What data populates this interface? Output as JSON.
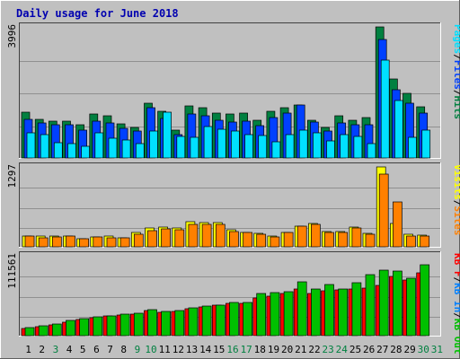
{
  "title": "Daily usage for June 2018",
  "colors": {
    "frame_bg": "#c0c0c0",
    "plot_bg": "#c0c0c0",
    "title": "#0000b0",
    "axis_label": "#000000",
    "hits": "#008040",
    "files": "#0040ff",
    "pages": "#00e0ff",
    "visits": "#ffff00",
    "sites": "#ff8000",
    "kbf": "#ff0000",
    "kbin": "#0080ff",
    "kbout": "#00c000",
    "weekend_day": "#008040",
    "weekday": "#000000"
  },
  "chart_data": [
    {
      "type": "bar",
      "panel": "top",
      "y_max_label": "3996",
      "ylim": [
        0,
        3996
      ],
      "legend": [
        {
          "text": "Pages",
          "color": "#00e0ff"
        },
        {
          "text": "/",
          "color": "#000000"
        },
        {
          "text": "Files",
          "color": "#0040ff"
        },
        {
          "text": "/",
          "color": "#000000"
        },
        {
          "text": "Hits",
          "color": "#008040"
        }
      ],
      "categories": [
        "1",
        "2",
        "3",
        "4",
        "5",
        "6",
        "7",
        "8",
        "9",
        "10",
        "11",
        "12",
        "13",
        "14",
        "15",
        "16",
        "17",
        "18",
        "19",
        "20",
        "21",
        "22",
        "23",
        "24",
        "25",
        "26",
        "27",
        "28",
        "29",
        "30",
        "31"
      ],
      "series": [
        {
          "name": "Hits",
          "values": [
            1400,
            1180,
            1120,
            1120,
            1020,
            1350,
            1290,
            1050,
            940,
            1680,
            1430,
            860,
            1580,
            1520,
            1370,
            1340,
            1360,
            1160,
            1410,
            1540,
            1620,
            1160,
            940,
            1280,
            1160,
            1220,
            3996,
            2420,
            1980,
            1560,
            null
          ]
        },
        {
          "name": "Files",
          "values": [
            1180,
            1080,
            1000,
            1000,
            860,
            1120,
            1060,
            890,
            820,
            1520,
            1200,
            720,
            1340,
            1280,
            1150,
            1100,
            1120,
            980,
            1220,
            1360,
            1620,
            1100,
            820,
            1080,
            1000,
            1020,
            3620,
            2080,
            1680,
            1360,
            null
          ]
        },
        {
          "name": "Pages",
          "values": [
            780,
            720,
            460,
            450,
            360,
            780,
            600,
            560,
            430,
            820,
            1400,
            650,
            620,
            960,
            870,
            820,
            720,
            690,
            480,
            720,
            840,
            760,
            530,
            700,
            660,
            430,
            2980,
            1760,
            620,
            840,
            null
          ]
        }
      ]
    },
    {
      "type": "bar",
      "panel": "middle",
      "y_max_label": "1297",
      "ylim": [
        0,
        1297
      ],
      "legend": [
        {
          "text": "Visits",
          "color": "#ffff00"
        },
        {
          "text": "/",
          "color": "#000000"
        },
        {
          "text": "Sites",
          "color": "#ff8000"
        }
      ],
      "categories": [
        "1",
        "2",
        "3",
        "4",
        "5",
        "6",
        "7",
        "8",
        "9",
        "10",
        "11",
        "12",
        "13",
        "14",
        "15",
        "16",
        "17",
        "18",
        "19",
        "20",
        "21",
        "22",
        "23",
        "24",
        "25",
        "26",
        "27",
        "28",
        "29",
        "30",
        "31"
      ],
      "series": [
        {
          "name": "Visits",
          "values": [
            180,
            170,
            170,
            180,
            130,
            160,
            170,
            150,
            230,
            300,
            320,
            300,
            410,
            400,
            390,
            280,
            240,
            220,
            170,
            230,
            340,
            380,
            250,
            250,
            320,
            220,
            1297,
            380,
            200,
            190,
            null
          ]
        },
        {
          "name": "Sites",
          "values": [
            170,
            150,
            160,
            170,
            130,
            160,
            150,
            140,
            200,
            260,
            290,
            280,
            370,
            360,
            370,
            250,
            240,
            210,
            160,
            230,
            330,
            360,
            230,
            230,
            300,
            200,
            1180,
            730,
            180,
            170,
            null
          ]
        }
      ]
    },
    {
      "type": "bar",
      "panel": "bottom",
      "y_max_label": "111561",
      "ylim": [
        0,
        111561
      ],
      "legend": [
        {
          "text": "KB F",
          "color": "#ff0000"
        },
        {
          "text": "/",
          "color": "#000000"
        },
        {
          "text": "KB In",
          "color": "#0080ff"
        },
        {
          "text": "/",
          "color": "#000000"
        },
        {
          "text": "KB Out",
          "color": "#00c000"
        }
      ],
      "categories": [
        "1",
        "2",
        "3",
        "4",
        "5",
        "6",
        "7",
        "8",
        "9",
        "10",
        "11",
        "12",
        "13",
        "14",
        "15",
        "16",
        "17",
        "18",
        "19",
        "20",
        "21",
        "22",
        "23",
        "24",
        "25",
        "26",
        "27",
        "28",
        "29",
        "30",
        "31"
      ],
      "series": [
        {
          "name": "KB F",
          "values": [
            10600,
            12800,
            14600,
            19400,
            22300,
            24700,
            27100,
            28900,
            30700,
            35400,
            32100,
            34000,
            37100,
            40300,
            42000,
            45100,
            45700,
            52200,
            55300,
            58600,
            65000,
            58400,
            62700,
            63700,
            64700,
            67000,
            70200,
            83100,
            77600,
            87400,
            null
          ]
        },
        {
          "name": "KB Out",
          "values": [
            11000,
            13900,
            15700,
            21300,
            23900,
            26400,
            27000,
            29800,
            31900,
            36700,
            33500,
            35400,
            38600,
            41900,
            42300,
            45900,
            46500,
            58900,
            59600,
            61000,
            75100,
            65600,
            71800,
            64800,
            73400,
            85200,
            91400,
            90600,
            80700,
            99300,
            null
          ]
        }
      ]
    }
  ],
  "x_axis": {
    "days": [
      {
        "label": "1",
        "weekend": false
      },
      {
        "label": "2",
        "weekend": false
      },
      {
        "label": "3",
        "weekend": true
      },
      {
        "label": "4",
        "weekend": false
      },
      {
        "label": "5",
        "weekend": false
      },
      {
        "label": "6",
        "weekend": false
      },
      {
        "label": "7",
        "weekend": false
      },
      {
        "label": "8",
        "weekend": false
      },
      {
        "label": "9",
        "weekend": true
      },
      {
        "label": "10",
        "weekend": true
      },
      {
        "label": "11",
        "weekend": false
      },
      {
        "label": "12",
        "weekend": false
      },
      {
        "label": "13",
        "weekend": false
      },
      {
        "label": "14",
        "weekend": false
      },
      {
        "label": "15",
        "weekend": false
      },
      {
        "label": "16",
        "weekend": true
      },
      {
        "label": "17",
        "weekend": true
      },
      {
        "label": "18",
        "weekend": false
      },
      {
        "label": "19",
        "weekend": false
      },
      {
        "label": "20",
        "weekend": false
      },
      {
        "label": "21",
        "weekend": false
      },
      {
        "label": "22",
        "weekend": false
      },
      {
        "label": "23",
        "weekend": true
      },
      {
        "label": "24",
        "weekend": true
      },
      {
        "label": "25",
        "weekend": false
      },
      {
        "label": "26",
        "weekend": false
      },
      {
        "label": "27",
        "weekend": false
      },
      {
        "label": "28",
        "weekend": false
      },
      {
        "label": "29",
        "weekend": false
      },
      {
        "label": "30",
        "weekend": true
      },
      {
        "label": "31",
        "weekend": true
      }
    ]
  }
}
